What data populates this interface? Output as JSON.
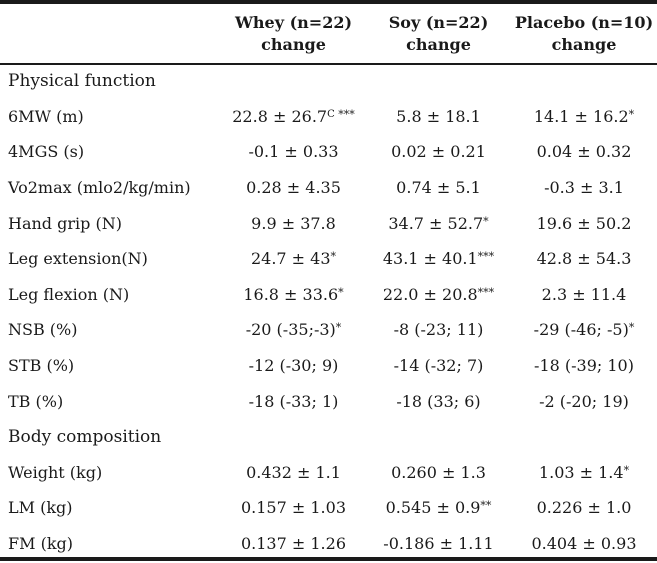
{
  "header": {
    "col0": "",
    "whey": {
      "line1": "Whey  (n=22)",
      "line2": "change"
    },
    "soy": {
      "line1": "Soy  (n=22)",
      "line2": "change"
    },
    "placebo": {
      "line1": "Placebo  (n=10)",
      "line2": "change"
    }
  },
  "sections": {
    "physical": "Physical function",
    "body": "Body composition"
  },
  "rows": [
    {
      "label": "6MW (m)",
      "whey": "22.8 ± 26.7",
      "whey_sup": "C",
      "whey_stars": " ***",
      "soy": "5.8 ± 18.1",
      "soy_stars": "",
      "placebo": "14.1 ± 16.2",
      "placebo_stars": "*"
    },
    {
      "label": "4MGS (s)",
      "whey": "-0.1 ± 0.33",
      "whey_sup": "",
      "whey_stars": "",
      "soy": "0.02 ± 0.21",
      "soy_stars": "",
      "placebo": "0.04 ± 0.32",
      "placebo_stars": ""
    },
    {
      "label": "Vo2max (mlo2/kg/min)",
      "whey": "0.28 ± 4.35",
      "whey_sup": "",
      "whey_stars": "",
      "soy": "0.74 ± 5.1",
      "soy_stars": "",
      "placebo": "-0.3 ± 3.1",
      "placebo_stars": ""
    },
    {
      "label": "Hand grip (N)",
      "whey": "9.9 ± 37.8",
      "whey_sup": "",
      "whey_stars": "",
      "soy": "34.7 ± 52.7",
      "soy_stars": "*",
      "placebo": "19.6 ± 50.2",
      "placebo_stars": ""
    },
    {
      "label": "Leg extension(N)",
      "whey": "24.7 ± 43",
      "whey_sup": "",
      "whey_stars": "*",
      "soy": "43.1 ± 40.1",
      "soy_stars": "***",
      "placebo": "42.8 ± 54.3",
      "placebo_stars": ""
    },
    {
      "label": "Leg flexion (N)",
      "whey": "16.8 ± 33.6",
      "whey_sup": "",
      "whey_stars": "*",
      "soy": "22.0 ± 20.8",
      "soy_stars": "***",
      "placebo": "2.3 ± 11.4",
      "placebo_stars": ""
    },
    {
      "label": "NSB (%)",
      "whey": "-20 (-35;-3)",
      "whey_sup": "",
      "whey_stars": "*",
      "soy": "-8 (-23; 11)",
      "soy_stars": "",
      "placebo": "-29 (-46; -5)",
      "placebo_stars": "*"
    },
    {
      "label": "STB (%)",
      "whey": "-12 (-30; 9)",
      "whey_sup": "",
      "whey_stars": "",
      "soy": "-14 (-32; 7)",
      "soy_stars": "",
      "placebo": "-18 (-39; 10)",
      "placebo_stars": ""
    },
    {
      "label": "TB (%)",
      "whey": "-18 (-33; 1)",
      "whey_sup": "",
      "whey_stars": "",
      "soy": "-18 (33; 6)",
      "soy_stars": "",
      "placebo": "-2 (-20; 19)",
      "placebo_stars": ""
    }
  ],
  "rows_body": [
    {
      "label": "Weight (kg)",
      "whey": "0.432 ± 1.1",
      "whey_stars": "",
      "soy": "0.260 ± 1.3",
      "soy_stars": "",
      "placebo": "1.03 ± 1.4",
      "placebo_stars": "*"
    },
    {
      "label": "LM (kg)",
      "whey": "0.157 ± 1.03",
      "whey_stars": "",
      "soy": "0.545 ± 0.9",
      "soy_stars": "**",
      "placebo": "0.226 ± 1.0",
      "placebo_stars": ""
    },
    {
      "label": "FM (kg)",
      "whey": "0.137 ± 1.26",
      "whey_stars": "",
      "soy": "-0.186 ± 1.11",
      "soy_stars": "",
      "placebo": "0.404 ± 0.93",
      "placebo_stars": ""
    }
  ]
}
